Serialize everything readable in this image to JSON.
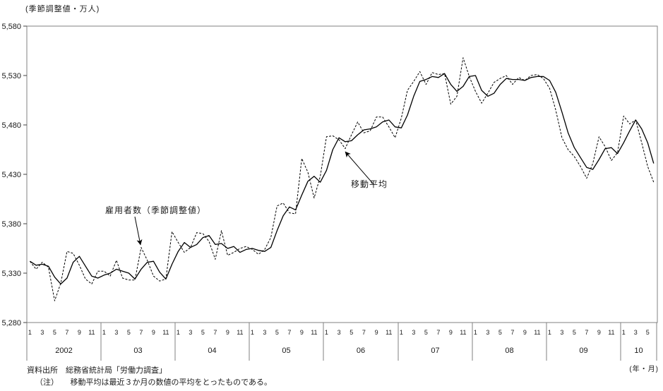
{
  "chart_data": {
    "type": "line",
    "unit_label": "(季節調整値・万人)",
    "x_unit_label": "(年・月)",
    "ylim": [
      5280,
      5580
    ],
    "grid": false,
    "y_ticks": [
      {
        "value": 5580,
        "label": "5,580"
      },
      {
        "value": 5530,
        "label": "5,530"
      },
      {
        "value": 5480,
        "label": "5,480"
      },
      {
        "value": 5430,
        "label": "5,430"
      },
      {
        "value": 5380,
        "label": "5,380"
      },
      {
        "value": 5330,
        "label": "5,330"
      },
      {
        "value": 5280,
        "label": "5,280"
      }
    ],
    "x_axis": {
      "years": [
        "2002",
        "03",
        "04",
        "05",
        "06",
        "07",
        "08",
        "09",
        "10"
      ],
      "months_per_year": [
        12,
        12,
        12,
        12,
        12,
        12,
        12,
        12,
        6
      ],
      "month_tick_labels": [
        "1",
        "3",
        "5",
        "7",
        "9",
        "11"
      ]
    },
    "series": [
      {
        "name": "雇用者数（季節調整値）",
        "style": "dashed",
        "color": "#000000",
        "values": [
          5342,
          5334,
          5341,
          5336,
          5302,
          5320,
          5352,
          5350,
          5338,
          5324,
          5319,
          5332,
          5332,
          5327,
          5343,
          5325,
          5323,
          5323,
          5356,
          5343,
          5327,
          5322,
          5324,
          5372,
          5361,
          5351,
          5356,
          5371,
          5370,
          5362,
          5344,
          5373,
          5348,
          5351,
          5355,
          5357,
          5354,
          5349,
          5354,
          5366,
          5398,
          5401,
          5391,
          5390,
          5446,
          5432,
          5406,
          5428,
          5468,
          5469,
          5465,
          5456,
          5470,
          5483,
          5472,
          5474,
          5488,
          5488,
          5478,
          5467,
          5487,
          5515,
          5524,
          5534,
          5521,
          5533,
          5531,
          5532,
          5501,
          5509,
          5548,
          5529,
          5514,
          5502,
          5512,
          5523,
          5527,
          5530,
          5521,
          5528,
          5525,
          5530,
          5531,
          5527,
          5517,
          5495,
          5467,
          5455,
          5448,
          5438,
          5426,
          5441,
          5468,
          5458,
          5444,
          5452,
          5489,
          5481,
          5485,
          5462,
          5438,
          5422
        ]
      },
      {
        "name": "移動平均",
        "style": "solid",
        "color": "#000000",
        "values": [
          5342,
          5338,
          5339,
          5337,
          5326,
          5319,
          5325,
          5341,
          5347,
          5337,
          5327,
          5325,
          5328,
          5330,
          5334,
          5332,
          5330,
          5324,
          5334,
          5341,
          5342,
          5331,
          5324,
          5339,
          5352,
          5361,
          5356,
          5359,
          5366,
          5368,
          5359,
          5360,
          5355,
          5357,
          5351,
          5354,
          5355,
          5353,
          5352,
          5356,
          5373,
          5388,
          5397,
          5394,
          5409,
          5423,
          5428,
          5422,
          5434,
          5455,
          5467,
          5463,
          5464,
          5470,
          5475,
          5476,
          5478,
          5483,
          5485,
          5478,
          5477,
          5490,
          5509,
          5524,
          5526,
          5529,
          5528,
          5532,
          5521,
          5514,
          5519,
          5529,
          5530,
          5515,
          5509,
          5512,
          5521,
          5527,
          5526,
          5526,
          5525,
          5528,
          5529,
          5529,
          5525,
          5513,
          5493,
          5472,
          5457,
          5447,
          5437,
          5435,
          5445,
          5456,
          5457,
          5451,
          5462,
          5474,
          5485,
          5476,
          5462,
          5441
        ]
      }
    ],
    "annotations": {
      "employment": "雇用者数（季節調整値）",
      "moving_average": "移動平均"
    }
  },
  "footer": {
    "source": "資料出所　総務省統計局「労働力調査」",
    "note": "（注）　　移動平均は最近３か月の数値の平均をとったものである。"
  }
}
